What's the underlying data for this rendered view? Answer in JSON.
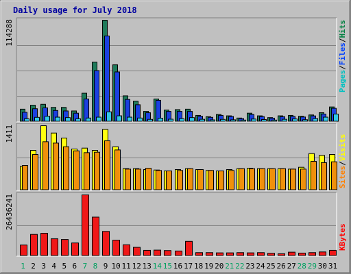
{
  "chart_data": {
    "type": "bar",
    "title": "Daily usage for July 2018",
    "categories": [
      "1",
      "2",
      "3",
      "4",
      "5",
      "6",
      "7",
      "8",
      "9",
      "10",
      "11",
      "12",
      "13",
      "14",
      "15",
      "16",
      "17",
      "18",
      "19",
      "20",
      "21",
      "22",
      "23",
      "24",
      "25",
      "26",
      "27",
      "28",
      "29",
      "30",
      "31"
    ],
    "weekend_days": [
      1,
      7,
      8,
      14,
      15,
      21,
      22,
      28,
      29
    ],
    "panels": [
      {
        "name": "hits_files_pages",
        "max_label": "114288",
        "ylim": [
          0,
          114288
        ],
        "legend": [
          {
            "label": "Pages",
            "color": "#00c0c0"
          },
          {
            "label": "Files",
            "color": "#0040ff"
          },
          {
            "label": "Hits",
            "color": "#008040"
          }
        ],
        "series": [
          {
            "name": "Hits",
            "color": "#1e7a5a",
            "values": [
              14000,
              18500,
              19500,
              16000,
              16000,
              12000,
              32000,
              67000,
              114288,
              64000,
              29000,
              23000,
              11500,
              25500,
              13000,
              13500,
              14000,
              7000,
              5500,
              8000,
              6500,
              4000,
              9500,
              6500,
              4500,
              6500,
              7000,
              6000,
              7500,
              10000,
              16500
            ]
          },
          {
            "name": "Files",
            "color": "#1a40e0",
            "values": [
              10500,
              14500,
              15500,
              12500,
              12000,
              9500,
              25500,
              57500,
              96500,
              56000,
              25000,
              19000,
              10000,
              24000,
              11500,
              11500,
              11500,
              6000,
              4800,
              7000,
              5800,
              3400,
              8000,
              5600,
              3900,
              5500,
              5800,
              5200,
              6400,
              8500,
              15000
            ]
          },
          {
            "name": "Pages",
            "color": "#30c8e8",
            "values": [
              3200,
              4800,
              6000,
              5000,
              4500,
              3200,
              4000,
              5000,
              11000,
              6500,
              5000,
              4000,
              2500,
              3800,
              2700,
              3300,
              4500,
              2600,
              1900,
              2500,
              2000,
              1700,
              2900,
              2300,
              1700,
              2600,
              3000,
              2100,
              3400,
              5000,
              8500
            ]
          }
        ]
      },
      {
        "name": "visits_sites",
        "max_label": "1411",
        "ylim": [
          0,
          1411
        ],
        "legend": [
          {
            "label": "Sites",
            "color": "#ff8000"
          },
          {
            "label": "Visits",
            "color": "#ffff00"
          }
        ],
        "series": [
          {
            "name": "Visits",
            "color": "#ffff10",
            "values": [
              520,
              870,
              1411,
              1250,
              1140,
              900,
              920,
              870,
              1330,
              950,
              470,
              470,
              450,
              440,
              420,
              450,
              470,
              450,
              430,
              420,
              450,
              470,
              480,
              470,
              470,
              470,
              460,
              500,
              800,
              760,
              780
            ]
          },
          {
            "name": "Sites",
            "color": "#f0900c",
            "values": [
              540,
              780,
              1060,
              1030,
              950,
              860,
              820,
              830,
              1080,
              880,
              460,
              460,
              480,
              430,
              420,
              430,
              470,
              450,
              430,
              420,
              430,
              470,
              470,
              470,
              470,
              470,
              460,
              460,
              630,
              600,
              620
            ]
          }
        ]
      },
      {
        "name": "kbytes",
        "max_label": "26436241",
        "ylim": [
          0,
          26436241
        ],
        "legend": [
          {
            "label": "KBytes",
            "color": "#ff0000"
          }
        ],
        "series": [
          {
            "name": "KBytes",
            "color": "#f01818",
            "values": [
              4700000,
              9300000,
              9800000,
              7400000,
              7100000,
              5600000,
              26436241,
              16800000,
              10600000,
              6800000,
              4800000,
              3700000,
              2400000,
              2500000,
              2300000,
              2100000,
              6300000,
              1400000,
              1400000,
              1300000,
              1300000,
              1400000,
              1300000,
              1400000,
              1100000,
              900000,
              1600000,
              1200000,
              1400000,
              1700000,
              2400000
            ]
          }
        ]
      }
    ]
  }
}
